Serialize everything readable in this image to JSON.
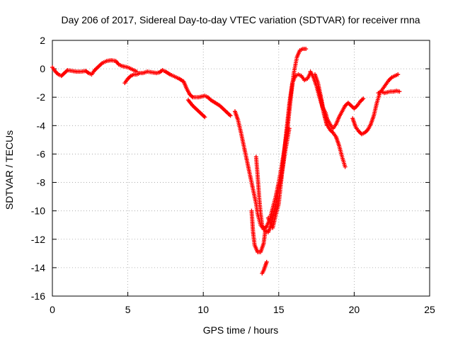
{
  "chart_data": {
    "type": "scatter",
    "title": "Day 206 of 2017, Sidereal Day-to-day VTEC variation (SDTVAR) for receiver rnna",
    "xlabel": "GPS time / hours",
    "ylabel": "SDTVAR / TECUs",
    "xlim": [
      0,
      25
    ],
    "ylim": [
      -16,
      2
    ],
    "xticks": [
      "0",
      "5",
      "10",
      "15",
      "20",
      "25"
    ],
    "yticks": [
      "2",
      "0",
      "-2",
      "-4",
      "-6",
      "-8",
      "-10",
      "-12",
      "-14",
      "-16"
    ],
    "grid": true,
    "color": "#ff0000",
    "marker": "+",
    "series": [
      {
        "points": [
          [
            0.0,
            0.1
          ],
          [
            0.2,
            -0.2
          ],
          [
            0.4,
            -0.4
          ],
          [
            0.6,
            -0.5
          ],
          [
            0.8,
            -0.3
          ],
          [
            1.0,
            -0.1
          ],
          [
            1.3,
            -0.15
          ],
          [
            1.6,
            -0.2
          ],
          [
            1.9,
            -0.2
          ],
          [
            2.2,
            -0.15
          ],
          [
            2.4,
            -0.3
          ],
          [
            2.6,
            -0.4
          ],
          [
            2.8,
            -0.1
          ],
          [
            3.0,
            0.1
          ],
          [
            3.3,
            0.4
          ],
          [
            3.6,
            0.55
          ],
          [
            3.9,
            0.6
          ],
          [
            4.2,
            0.55
          ],
          [
            4.4,
            0.3
          ],
          [
            4.6,
            0.2
          ],
          [
            4.8,
            0.15
          ],
          [
            5.0,
            0.1
          ],
          [
            5.2,
            0.0
          ],
          [
            5.4,
            -0.1
          ],
          [
            5.6,
            -0.2
          ]
        ]
      },
      {
        "points": [
          [
            4.8,
            -1.0
          ],
          [
            5.0,
            -0.7
          ],
          [
            5.2,
            -0.5
          ],
          [
            5.4,
            -0.4
          ],
          [
            5.6,
            -0.4
          ],
          [
            5.8,
            -0.3
          ],
          [
            6.0,
            -0.3
          ],
          [
            6.3,
            -0.2
          ],
          [
            6.6,
            -0.25
          ],
          [
            6.9,
            -0.3
          ],
          [
            7.1,
            -0.25
          ],
          [
            7.3,
            -0.1
          ],
          [
            7.5,
            -0.2
          ],
          [
            7.8,
            -0.4
          ],
          [
            8.1,
            -0.55
          ],
          [
            8.4,
            -0.7
          ],
          [
            8.7,
            -0.9
          ],
          [
            8.9,
            -1.4
          ],
          [
            9.1,
            -1.8
          ],
          [
            9.3,
            -2.0
          ],
          [
            9.5,
            -2.0
          ],
          [
            9.7,
            -2.0
          ],
          [
            9.9,
            -1.95
          ],
          [
            10.1,
            -1.9
          ],
          [
            10.3,
            -2.0
          ],
          [
            10.5,
            -2.2
          ],
          [
            10.8,
            -2.4
          ],
          [
            11.1,
            -2.6
          ],
          [
            11.4,
            -2.9
          ],
          [
            11.6,
            -3.1
          ],
          [
            11.8,
            -3.3
          ]
        ]
      },
      {
        "points": [
          [
            9.0,
            -2.2
          ],
          [
            9.3,
            -2.6
          ],
          [
            9.6,
            -2.9
          ],
          [
            9.9,
            -3.2
          ],
          [
            10.1,
            -3.4
          ]
        ]
      },
      {
        "points": [
          [
            12.1,
            -3.0
          ],
          [
            12.3,
            -3.6
          ],
          [
            12.5,
            -4.5
          ],
          [
            12.7,
            -5.5
          ],
          [
            12.9,
            -6.5
          ],
          [
            13.1,
            -7.5
          ],
          [
            13.3,
            -8.5
          ],
          [
            13.5,
            -9.5
          ],
          [
            13.6,
            -10.2
          ],
          [
            13.8,
            -11.0
          ],
          [
            14.0,
            -11.3
          ],
          [
            14.2,
            -11.1
          ],
          [
            14.4,
            -10.6
          ],
          [
            14.6,
            -9.8
          ],
          [
            14.8,
            -9.0
          ],
          [
            15.0,
            -8.0
          ],
          [
            15.2,
            -6.8
          ],
          [
            15.4,
            -5.5
          ],
          [
            15.6,
            -4.0
          ],
          [
            15.8,
            -2.0
          ],
          [
            16.0,
            -0.3
          ],
          [
            16.2,
            0.8
          ],
          [
            16.4,
            1.3
          ],
          [
            16.6,
            1.4
          ],
          [
            16.8,
            1.4
          ]
        ]
      },
      {
        "points": [
          [
            13.5,
            -6.2
          ],
          [
            13.6,
            -7.5
          ],
          [
            13.7,
            -9.0
          ],
          [
            13.8,
            -10.2
          ],
          [
            13.9,
            -11.0
          ],
          [
            14.0,
            -11.2
          ],
          [
            14.1,
            -11.4
          ],
          [
            14.3,
            -11.5
          ],
          [
            14.5,
            -11.0
          ],
          [
            14.7,
            -10.0
          ],
          [
            14.9,
            -9.0
          ],
          [
            15.1,
            -8.0
          ],
          [
            15.3,
            -6.5
          ],
          [
            15.5,
            -4.5
          ],
          [
            15.7,
            -2.5
          ],
          [
            15.9,
            -1.0
          ],
          [
            16.1,
            -0.5
          ],
          [
            16.3,
            -0.4
          ],
          [
            16.5,
            -0.5
          ],
          [
            16.7,
            -0.8
          ],
          [
            16.9,
            -0.7
          ],
          [
            17.1,
            -0.3
          ]
        ]
      },
      {
        "points": [
          [
            13.2,
            -10.0
          ],
          [
            13.3,
            -11.5
          ],
          [
            13.4,
            -12.4
          ],
          [
            13.6,
            -12.9
          ],
          [
            13.8,
            -12.9
          ],
          [
            14.0,
            -12.3
          ],
          [
            14.1,
            -11.5
          ]
        ]
      },
      {
        "points": [
          [
            13.9,
            -14.4
          ],
          [
            14.0,
            -14.2
          ],
          [
            14.1,
            -13.9
          ],
          [
            14.2,
            -13.6
          ]
        ]
      },
      {
        "points": [
          [
            14.3,
            -10.5
          ],
          [
            14.5,
            -11.0
          ],
          [
            14.6,
            -11.2
          ],
          [
            14.8,
            -10.3
          ],
          [
            15.0,
            -9.5
          ],
          [
            15.2,
            -7.5
          ],
          [
            15.4,
            -6.0
          ],
          [
            15.6,
            -4.8
          ],
          [
            15.7,
            -4.2
          ]
        ]
      },
      {
        "points": [
          [
            17.1,
            -0.2
          ],
          [
            17.3,
            -0.6
          ],
          [
            17.5,
            -1.2
          ],
          [
            17.7,
            -2.0
          ],
          [
            17.9,
            -2.7
          ],
          [
            18.1,
            -3.1
          ],
          [
            18.2,
            -3.5
          ],
          [
            18.4,
            -3.9
          ],
          [
            18.6,
            -4.2
          ],
          [
            18.8,
            -3.9
          ],
          [
            19.0,
            -3.4
          ],
          [
            19.2,
            -3.0
          ],
          [
            19.4,
            -2.6
          ],
          [
            19.6,
            -2.4
          ],
          [
            19.8,
            -2.6
          ],
          [
            20.0,
            -2.8
          ],
          [
            20.2,
            -2.6
          ],
          [
            20.4,
            -2.3
          ],
          [
            20.6,
            -2.1
          ]
        ]
      },
      {
        "points": [
          [
            17.4,
            -0.4
          ],
          [
            17.6,
            -1.0
          ],
          [
            17.8,
            -2.0
          ],
          [
            18.0,
            -3.1
          ],
          [
            18.2,
            -3.9
          ],
          [
            18.4,
            -4.3
          ],
          [
            18.6,
            -4.5
          ],
          [
            18.8,
            -4.8
          ],
          [
            19.0,
            -5.4
          ],
          [
            19.2,
            -6.2
          ],
          [
            19.4,
            -6.9
          ]
        ]
      },
      {
        "points": [
          [
            17.6,
            -1.4
          ],
          [
            17.8,
            -2.2
          ],
          [
            18.0,
            -3.2
          ],
          [
            18.2,
            -4.0
          ]
        ]
      },
      {
        "points": [
          [
            19.9,
            -3.5
          ],
          [
            20.1,
            -4.1
          ],
          [
            20.3,
            -4.4
          ],
          [
            20.5,
            -4.6
          ],
          [
            20.7,
            -4.5
          ],
          [
            20.9,
            -4.3
          ],
          [
            21.1,
            -3.9
          ],
          [
            21.3,
            -3.3
          ],
          [
            21.5,
            -2.4
          ],
          [
            21.7,
            -1.7
          ],
          [
            21.9,
            -1.4
          ],
          [
            22.1,
            -1.1
          ],
          [
            22.3,
            -0.8
          ],
          [
            22.5,
            -0.6
          ],
          [
            22.7,
            -0.5
          ],
          [
            22.9,
            -0.4
          ]
        ]
      },
      {
        "points": [
          [
            21.6,
            -1.7
          ],
          [
            21.8,
            -1.6
          ],
          [
            22.0,
            -1.7
          ],
          [
            22.2,
            -1.65
          ],
          [
            22.4,
            -1.6
          ],
          [
            22.6,
            -1.6
          ],
          [
            22.8,
            -1.55
          ],
          [
            23.0,
            -1.6
          ]
        ]
      }
    ]
  }
}
